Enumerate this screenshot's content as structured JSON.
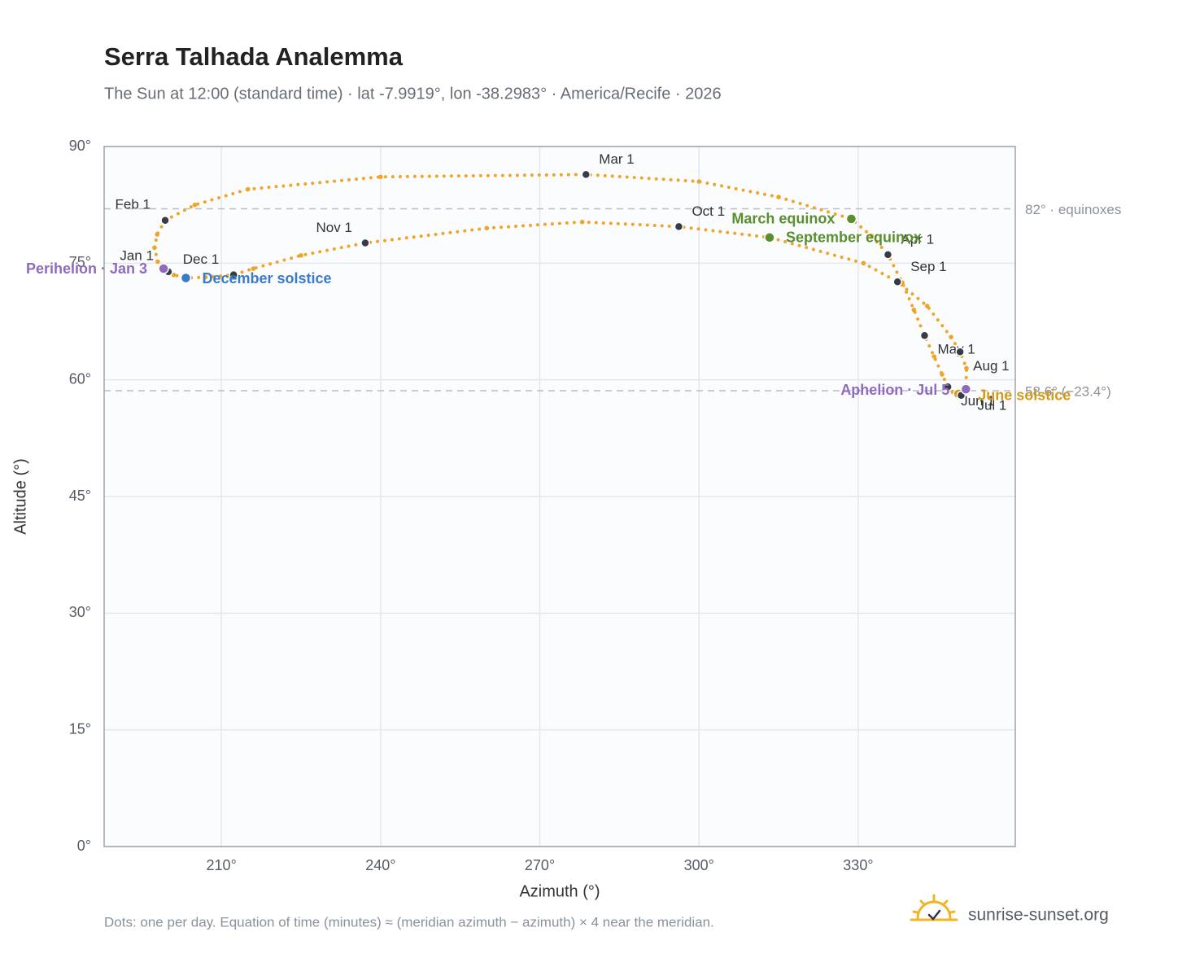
{
  "chart_data": {
    "type": "scatter",
    "title": "Serra Talhada Analemma",
    "subtitle": "The Sun at 12:00 (standard time) · lat -7.9919°, lon -38.2983° · America/Recife · 2026",
    "xlabel": "Azimuth (°)",
    "ylabel": "Altitude (°)",
    "xlim": [
      187.9,
      359.6
    ],
    "ylim": [
      0,
      90
    ],
    "xticks": [
      {
        "value": 210,
        "label": "210°"
      },
      {
        "value": 240,
        "label": "240°"
      },
      {
        "value": 270,
        "label": "270°"
      },
      {
        "value": 300,
        "label": "300°"
      },
      {
        "value": 330,
        "label": "330°"
      }
    ],
    "yticks": [
      {
        "value": 0,
        "label": "0°"
      },
      {
        "value": 15,
        "label": "15°"
      },
      {
        "value": 30,
        "label": "30°"
      },
      {
        "value": 45,
        "label": "45°"
      },
      {
        "value": 60,
        "label": "60°"
      },
      {
        "value": 75,
        "label": "75°"
      },
      {
        "value": 90,
        "label": "90°"
      }
    ],
    "grid": true,
    "series": [
      {
        "color": "#f0a52a",
        "x": [
          200.0,
          198.0,
          197.4,
          197.9,
          199.4,
          205,
          215,
          240,
          278.7,
          300,
          315,
          328.7,
          332.5,
          335.6,
          338.3,
          340.5,
          342.5,
          344.3,
          345.8,
          346.9,
          347.9,
          348.9,
          349.4,
          350.3,
          350.4,
          349.2,
          347.5,
          343,
          337.4,
          331,
          313.3,
          296.2,
          278,
          260,
          237.1,
          225,
          216,
          212.3,
          207,
          203.3,
          201
        ],
        "y": [
          73.9,
          75.2,
          77.0,
          78.7,
          80.5,
          82.5,
          84.5,
          86.1,
          86.4,
          85.5,
          83.5,
          80.7,
          78.5,
          76.1,
          72.5,
          69,
          65.7,
          63,
          60.7,
          59.1,
          58.4,
          58.2,
          58.0,
          58.8,
          61.5,
          63.6,
          65.5,
          69.5,
          72.6,
          75,
          78.3,
          79.7,
          80.3,
          79.5,
          77.6,
          76,
          74.3,
          73.5,
          73.2,
          73.1,
          73.5
        ]
      }
    ],
    "markers": [
      {
        "label": "Jan 1",
        "x": 200.0,
        "y": 73.9,
        "color": "#333c48"
      },
      {
        "label": "Perihelion · Jan 3",
        "x": 199.1,
        "y": 74.3,
        "color": "#8e6bbf"
      },
      {
        "label": "Feb 1",
        "x": 199.4,
        "y": 80.5,
        "color": "#333c48"
      },
      {
        "label": "Mar 1",
        "x": 278.7,
        "y": 86.4,
        "color": "#333c48"
      },
      {
        "label": "March equinox",
        "x": 328.7,
        "y": 80.7,
        "color": "#5a8f2e"
      },
      {
        "label": "Apr 1",
        "x": 335.6,
        "y": 76.1,
        "color": "#333c48"
      },
      {
        "label": "May 1",
        "x": 342.5,
        "y": 65.7,
        "color": "#333c48"
      },
      {
        "label": "Jun 1",
        "x": 346.9,
        "y": 59.1,
        "color": "#333c48"
      },
      {
        "label": "June solstice",
        "x": 348.9,
        "y": 58.2,
        "color": "#d49a1a"
      },
      {
        "label": "Jul 1",
        "x": 349.4,
        "y": 58.0,
        "color": "#333c48"
      },
      {
        "label": "Aphelion · Jul 5",
        "x": 350.3,
        "y": 58.8,
        "color": "#8e6bbf"
      },
      {
        "label": "Aug 1",
        "x": 349.2,
        "y": 63.6,
        "color": "#333c48"
      },
      {
        "label": "Sep 1",
        "x": 337.4,
        "y": 72.6,
        "color": "#333c48"
      },
      {
        "label": "September equinox",
        "x": 313.3,
        "y": 78.3,
        "color": "#5a8f2e"
      },
      {
        "label": "Oct 1",
        "x": 296.2,
        "y": 79.7,
        "color": "#333c48"
      },
      {
        "label": "Nov 1",
        "x": 237.1,
        "y": 77.6,
        "color": "#333c48"
      },
      {
        "label": "Dec 1",
        "x": 212.3,
        "y": 73.5,
        "color": "#333c48"
      },
      {
        "label": "December solstice",
        "x": 203.3,
        "y": 73.1,
        "color": "#3a7bc8"
      }
    ],
    "reference_lines": [
      {
        "value": 82,
        "label": "82° · equinoxes"
      },
      {
        "value": 58.6,
        "label": "58.6° (−23.4°)"
      }
    ],
    "footnote": "Dots: one per day. Equation of time (minutes) ≈ (meridian azimuth − azimuth) × 4 near the meridian.",
    "brand": "sunrise-sunset.org"
  }
}
